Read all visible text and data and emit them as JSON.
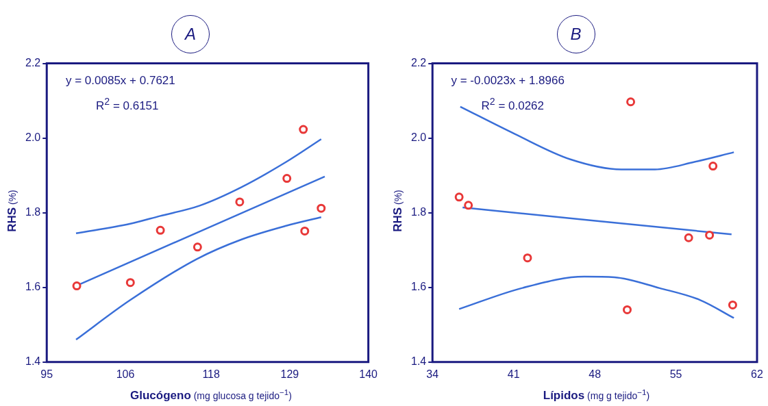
{
  "chart_data": [
    {
      "type": "scatter",
      "title": "A",
      "xlabel": "Glucógeno (mg glucosa g tejido$^{−1}$)",
      "ylabel": "RHS (%)",
      "annotations": [
        "y = 0.0085x + 0.7621",
        "R$^{2}$ = 0.6151"
      ],
      "xlim": [
        95,
        140
      ],
      "xticks": [
        95,
        106,
        118,
        129,
        140
      ],
      "ylim": [
        1.4,
        2.2
      ],
      "yticks": [
        {
          "value": 1.4,
          "label": "1.4"
        },
        {
          "value": 1.6,
          "label": "1.6"
        },
        {
          "value": 1.8,
          "label": "1.8"
        },
        {
          "value": 2,
          "label": "2.0"
        },
        {
          "value": 2.2,
          "label": "2.2"
        }
      ],
      "grid": false,
      "legend": false,
      "series": [
        {
          "type": "line",
          "color": "#3a6fd8",
          "x": [
            99.2,
            133.9
          ],
          "values": [
            1.605,
            1.897
          ]
        },
        {
          "type": "line",
          "color": "#3a6fd8",
          "x": [
            99.1,
            106.6,
            110.8,
            116.4,
            122.2,
            128.5,
            133.4
          ],
          "values": [
            1.745,
            1.77,
            1.791,
            1.819,
            1.868,
            1.936,
            1.997
          ]
        },
        {
          "type": "line",
          "color": "#3a6fd8",
          "x": [
            99.1,
            106.6,
            116.0,
            122.2,
            128.5,
            133.4
          ],
          "values": [
            1.46,
            1.565,
            1.676,
            1.728,
            1.765,
            1.788
          ]
        },
        {
          "type": "scatter",
          "color": "#e83838",
          "marker": "circle",
          "x": [
            99.2,
            106.7,
            110.9,
            116.1,
            122.0,
            128.6,
            130.9,
            131.1,
            133.4
          ],
          "values": [
            1.604,
            1.613,
            1.753,
            1.708,
            1.829,
            1.892,
            2.023,
            1.751,
            1.812
          ]
        }
      ]
    },
    {
      "type": "scatter",
      "title": "B",
      "xlabel": "Lípidos (mg g tejido$^{−1}$)",
      "ylabel": "RHS (%)",
      "annotations": [
        "y = -0.0023x + 1.8966",
        "R$^{2}$ = 0.0262"
      ],
      "xlim": [
        34,
        62
      ],
      "xticks": [
        34,
        41,
        48,
        55,
        62
      ],
      "ylim": [
        1.4,
        2.2
      ],
      "yticks": [
        {
          "value": 1.4,
          "label": "1.4"
        },
        {
          "value": 1.6,
          "label": "1.6"
        },
        {
          "value": 1.8,
          "label": "1.8"
        },
        {
          "value": 2,
          "label": "2.0"
        },
        {
          "value": 2.2,
          "label": "2.2"
        }
      ],
      "grid": false,
      "legend": false,
      "series": [
        {
          "type": "line",
          "color": "#3a6fd8",
          "x": [
            36.6,
            59.8
          ],
          "values": [
            1.814,
            1.742
          ]
        },
        {
          "type": "line",
          "color": "#3a6fd8",
          "x": [
            36.4,
            41.1,
            45.9,
            50.3,
            53.2,
            56.6,
            60.0
          ],
          "values": [
            2.084,
            2.011,
            1.943,
            1.916,
            1.916,
            1.936,
            1.962
          ]
        },
        {
          "type": "line",
          "color": "#3a6fd8",
          "x": [
            36.3,
            41.7,
            47.1,
            49.7,
            53.6,
            57.1,
            60.0
          ],
          "values": [
            1.542,
            1.598,
            1.629,
            1.627,
            1.598,
            1.566,
            1.518
          ]
        },
        {
          "type": "scatter",
          "color": "#e83838",
          "marker": "circle",
          "x": [
            36.3,
            37.1,
            42.2,
            51.1,
            50.8,
            56.1,
            57.9,
            58.2,
            59.9
          ],
          "values": [
            1.842,
            1.82,
            1.679,
            2.097,
            1.54,
            1.733,
            1.74,
            1.925,
            1.553
          ]
        }
      ]
    }
  ]
}
